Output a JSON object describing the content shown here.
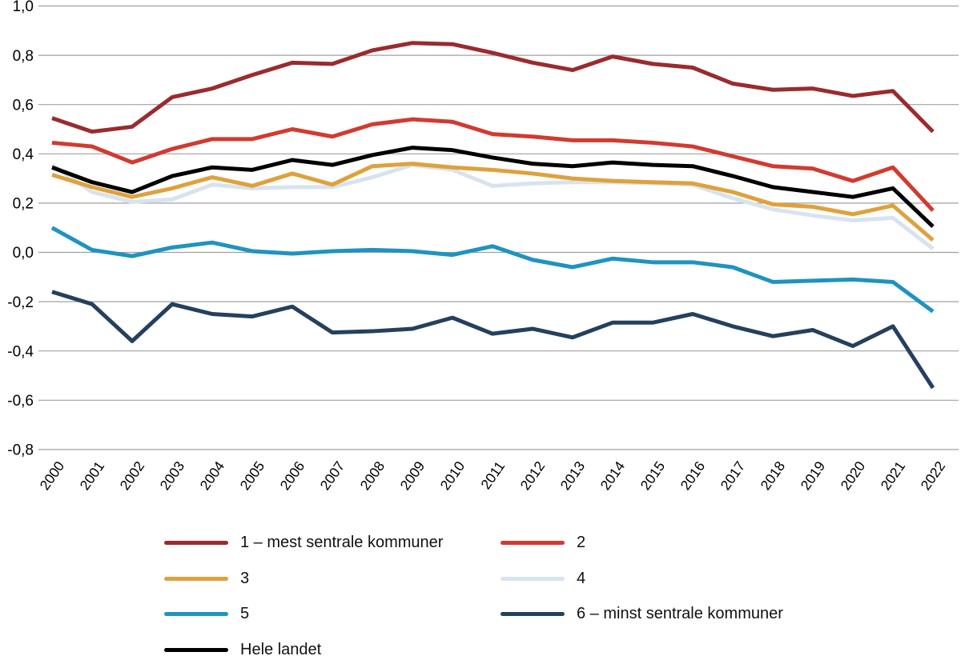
{
  "chart_data": {
    "type": "line",
    "title": "",
    "xlabel": "",
    "ylabel": "",
    "x": [
      2000,
      2001,
      2002,
      2003,
      2004,
      2005,
      2006,
      2007,
      2008,
      2009,
      2010,
      2011,
      2012,
      2013,
      2014,
      2015,
      2016,
      2017,
      2018,
      2019,
      2020,
      2021,
      2022
    ],
    "ylim": [
      -0.8,
      1.0
    ],
    "ytick_step": 0.2,
    "decimal_separator": ",",
    "grid": true,
    "legend_position": "bottom",
    "series": [
      {
        "name": "1 – mest sentrale kommuner",
        "color": "#9a2b2e",
        "values": [
          0.545,
          0.49,
          0.51,
          0.63,
          0.665,
          0.72,
          0.77,
          0.765,
          0.82,
          0.85,
          0.845,
          0.81,
          0.77,
          0.74,
          0.795,
          0.765,
          0.75,
          0.685,
          0.66,
          0.665,
          0.635,
          0.655,
          0.49
        ]
      },
      {
        "name": "2",
        "color": "#d23a30",
        "values": [
          0.445,
          0.43,
          0.365,
          0.42,
          0.46,
          0.46,
          0.5,
          0.47,
          0.52,
          0.54,
          0.53,
          0.48,
          0.47,
          0.455,
          0.455,
          0.445,
          0.43,
          0.39,
          0.35,
          0.34,
          0.29,
          0.345,
          0.17
        ]
      },
      {
        "name": "3",
        "color": "#dfa13c",
        "values": [
          0.315,
          0.265,
          0.225,
          0.26,
          0.305,
          0.27,
          0.32,
          0.275,
          0.35,
          0.36,
          0.345,
          0.335,
          0.32,
          0.3,
          0.29,
          0.285,
          0.28,
          0.245,
          0.195,
          0.185,
          0.155,
          0.19,
          0.05
        ]
      },
      {
        "name": "4",
        "color": "#d8e3f0",
        "values": [
          0.355,
          0.245,
          0.205,
          0.215,
          0.275,
          0.26,
          0.265,
          0.265,
          0.305,
          0.355,
          0.335,
          0.27,
          0.28,
          0.285,
          0.285,
          0.28,
          0.275,
          0.22,
          0.175,
          0.15,
          0.13,
          0.14,
          0.015
        ]
      },
      {
        "name": "5",
        "color": "#1f93c0",
        "values": [
          0.1,
          0.01,
          -0.015,
          0.02,
          0.04,
          0.005,
          -0.005,
          0.005,
          0.01,
          0.005,
          -0.01,
          0.025,
          -0.03,
          -0.06,
          -0.025,
          -0.04,
          -0.04,
          -0.06,
          -0.12,
          -0.115,
          -0.11,
          -0.12,
          -0.24
        ]
      },
      {
        "name": "6 – minst sentrale kommuner",
        "color": "#25405e",
        "values": [
          -0.16,
          -0.21,
          -0.36,
          -0.21,
          -0.25,
          -0.26,
          -0.22,
          -0.325,
          -0.32,
          -0.31,
          -0.265,
          -0.33,
          -0.31,
          -0.345,
          -0.285,
          -0.285,
          -0.25,
          -0.3,
          -0.34,
          -0.315,
          -0.38,
          -0.3,
          -0.55
        ]
      },
      {
        "name": "Hele landet",
        "color": "#000000",
        "values": [
          0.345,
          0.285,
          0.245,
          0.31,
          0.345,
          0.335,
          0.375,
          0.355,
          0.395,
          0.425,
          0.415,
          0.385,
          0.36,
          0.35,
          0.365,
          0.355,
          0.35,
          0.31,
          0.265,
          0.245,
          0.225,
          0.26,
          0.105
        ]
      }
    ],
    "style": {
      "gridline_color": "#a0a0a0",
      "axis_text_color": "#000000",
      "line_width": 5
    }
  }
}
